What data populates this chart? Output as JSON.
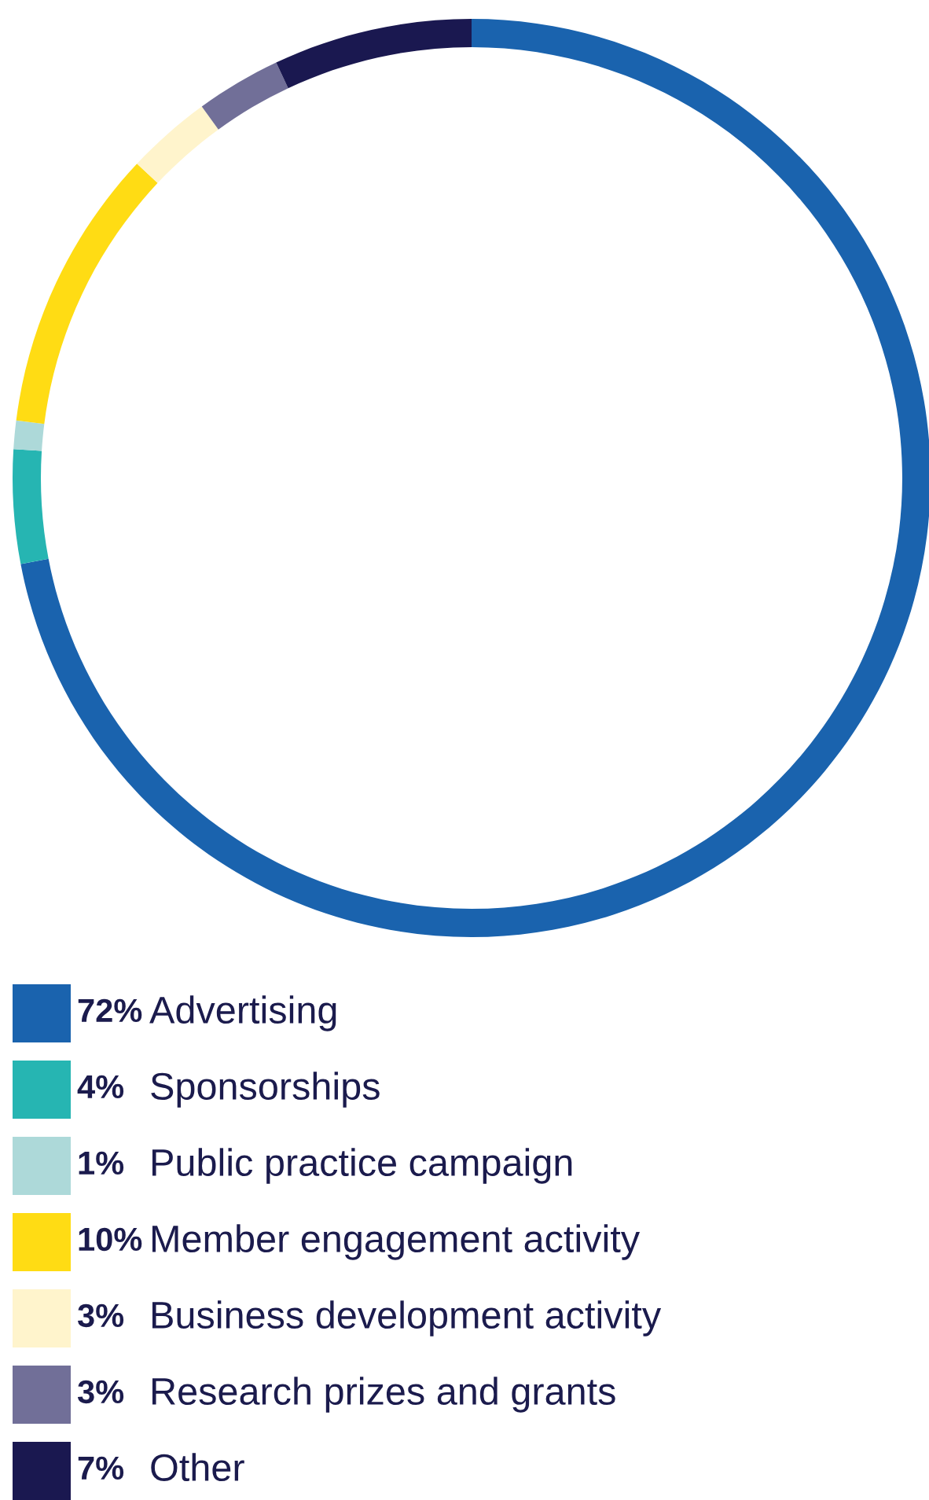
{
  "chart_data": {
    "type": "donut",
    "categories": [
      "Advertising",
      "Sponsorships",
      "Public practice campaign",
      "Member engagement activity",
      "Business development activity",
      "Research prizes and grants",
      "Other"
    ],
    "values": [
      72,
      4,
      1,
      10,
      3,
      3,
      7
    ],
    "value_labels": [
      "72%",
      "4%",
      "1%",
      "10%",
      "3%",
      "3%",
      "7%"
    ],
    "colors": [
      "#1a63ae",
      "#26b5b2",
      "#add9d9",
      "#ffdc14",
      "#fff4cc",
      "#716f98",
      "#1a1850"
    ],
    "legend": "bottom"
  }
}
